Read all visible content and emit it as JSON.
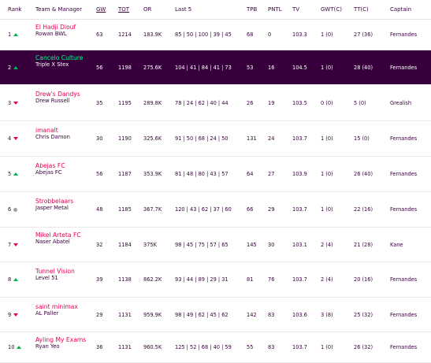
{
  "headers": {
    "rank": "Rank",
    "team": "Team & Manager",
    "gw": "GW",
    "tot": "TOT",
    "or": "OR",
    "last5": "Last 5",
    "tpb": "TPB",
    "pntl": "PNTL",
    "tv": "TV",
    "gwt": "GWT(C)",
    "tt": "TT(C)",
    "captain": "Captain"
  },
  "rows": [
    {
      "rank": "1",
      "move": "up",
      "team": "El Hadji Diouf",
      "manager": "Rowan BWL",
      "gw": "63",
      "tot": "1214",
      "or": "183.9K",
      "last5": "85 | 50 | 100 | 39 | 45",
      "tpb": "68",
      "pntl": "0",
      "tv": "103.3",
      "gwt": "1 (0)",
      "tt": "27 (36)",
      "captain": "Fernandes",
      "highlight": false
    },
    {
      "rank": "2",
      "move": "up",
      "team": "Cancelo Culture",
      "manager": "Triple X Stex",
      "gw": "56",
      "tot": "1198",
      "or": "275.6K",
      "last5": "104 | 41 | 84 | 41 | 73",
      "tpb": "53",
      "pntl": "16",
      "tv": "104.5",
      "gwt": "1 (0)",
      "tt": "28 (40)",
      "captain": "Fernandes",
      "highlight": true
    },
    {
      "rank": "3",
      "move": "down",
      "team": "Drew's Dandys",
      "manager": "Drew Russell",
      "gw": "35",
      "tot": "1195",
      "or": "289.8K",
      "last5": "78 | 24 | 62 | 40 | 44",
      "tpb": "26",
      "pntl": "19",
      "tv": "103.5",
      "gwt": "0 (0)",
      "tt": "5 (0)",
      "captain": "Grealish",
      "highlight": false
    },
    {
      "rank": "4",
      "move": "down",
      "team": "imanalt",
      "manager": "Chris Damon",
      "gw": "30",
      "tot": "1190",
      "or": "325.6K",
      "last5": "91 | 50 | 68 | 24 | 50",
      "tpb": "131",
      "pntl": "24",
      "tv": "103.7",
      "gwt": "1 (0)",
      "tt": "15 (0)",
      "captain": "Fernandes",
      "highlight": false
    },
    {
      "rank": "5",
      "move": "up",
      "team": "Abejas FC",
      "manager": "Abejas FC",
      "gw": "56",
      "tot": "1187",
      "or": "353.9K",
      "last5": "81 | 48 | 80 | 43 | 57",
      "tpb": "64",
      "pntl": "27",
      "tv": "103.9",
      "gwt": "1 (0)",
      "tt": "26 (40)",
      "captain": "Fernandes",
      "highlight": false
    },
    {
      "rank": "6",
      "move": "same",
      "team": "Strobbelaars",
      "manager": "Jasper Metal",
      "gw": "48",
      "tot": "1185",
      "or": "367.7K",
      "last5": "120 | 43 | 62 | 37 | 60 ",
      "tpb": "66",
      "pntl": "29",
      "tv": "103.7",
      "gwt": "1 (0)",
      "tt": "22 (16)",
      "captain": "Fernandes",
      "highlight": false
    },
    {
      "rank": "7",
      "move": "down",
      "team": "Mikel Arteta FC",
      "manager": "Naser Abatel",
      "gw": "32",
      "tot": "1184",
      "or": "375K",
      "last5": "98 | 45 | 75 | 57 | 65",
      "tpb": "145",
      "pntl": "30",
      "tv": "103.1",
      "gwt": "2 (4)",
      "tt": "21 (28)",
      "captain": "Kane",
      "highlight": false
    },
    {
      "rank": "8",
      "move": "up",
      "team": "Tunnel Vision",
      "manager": "Level 51",
      "gw": "39",
      "tot": "1138",
      "or": "862.2K",
      "last5": "93 | 44 | 89 | 29 | 31",
      "tpb": "81",
      "pntl": "76",
      "tv": "103.7",
      "gwt": "2 (4)",
      "tt": "20 (16)",
      "captain": "Fernandes",
      "highlight": false
    },
    {
      "rank": "9",
      "move": "down",
      "team": "saint minimax",
      "manager": "AL Paller",
      "gw": "29",
      "tot": "1131",
      "or": "959.9K",
      "last5": "98 | 49 | 62 | 45 | 62",
      "tpb": "142",
      "pntl": "83",
      "tv": "103.6",
      "gwt": "3 (8)",
      "tt": "25 (32)",
      "captain": "Fernandes",
      "highlight": false
    },
    {
      "rank": "10",
      "move": "up",
      "team": "Ayling My Exams",
      "manager": "Ryan Yeo",
      "gw": "36",
      "tot": "1131",
      "or": "960.5K",
      "last5": "125 | 52 | 68 | 40 | 59",
      "tpb": "55",
      "pntl": "83",
      "tv": "103.7",
      "gwt": "1 (0)",
      "tt": "26 (32)",
      "captain": "Fernandes",
      "highlight": false
    }
  ],
  "colors": {
    "primary": "#37003c",
    "team_link": "#e90052",
    "highlight_bg": "#37003c",
    "highlight_team": "#00ff87",
    "arrow_up": "#01b453",
    "arrow_down": "#e90052",
    "arrow_same": "#a0a0a0"
  }
}
